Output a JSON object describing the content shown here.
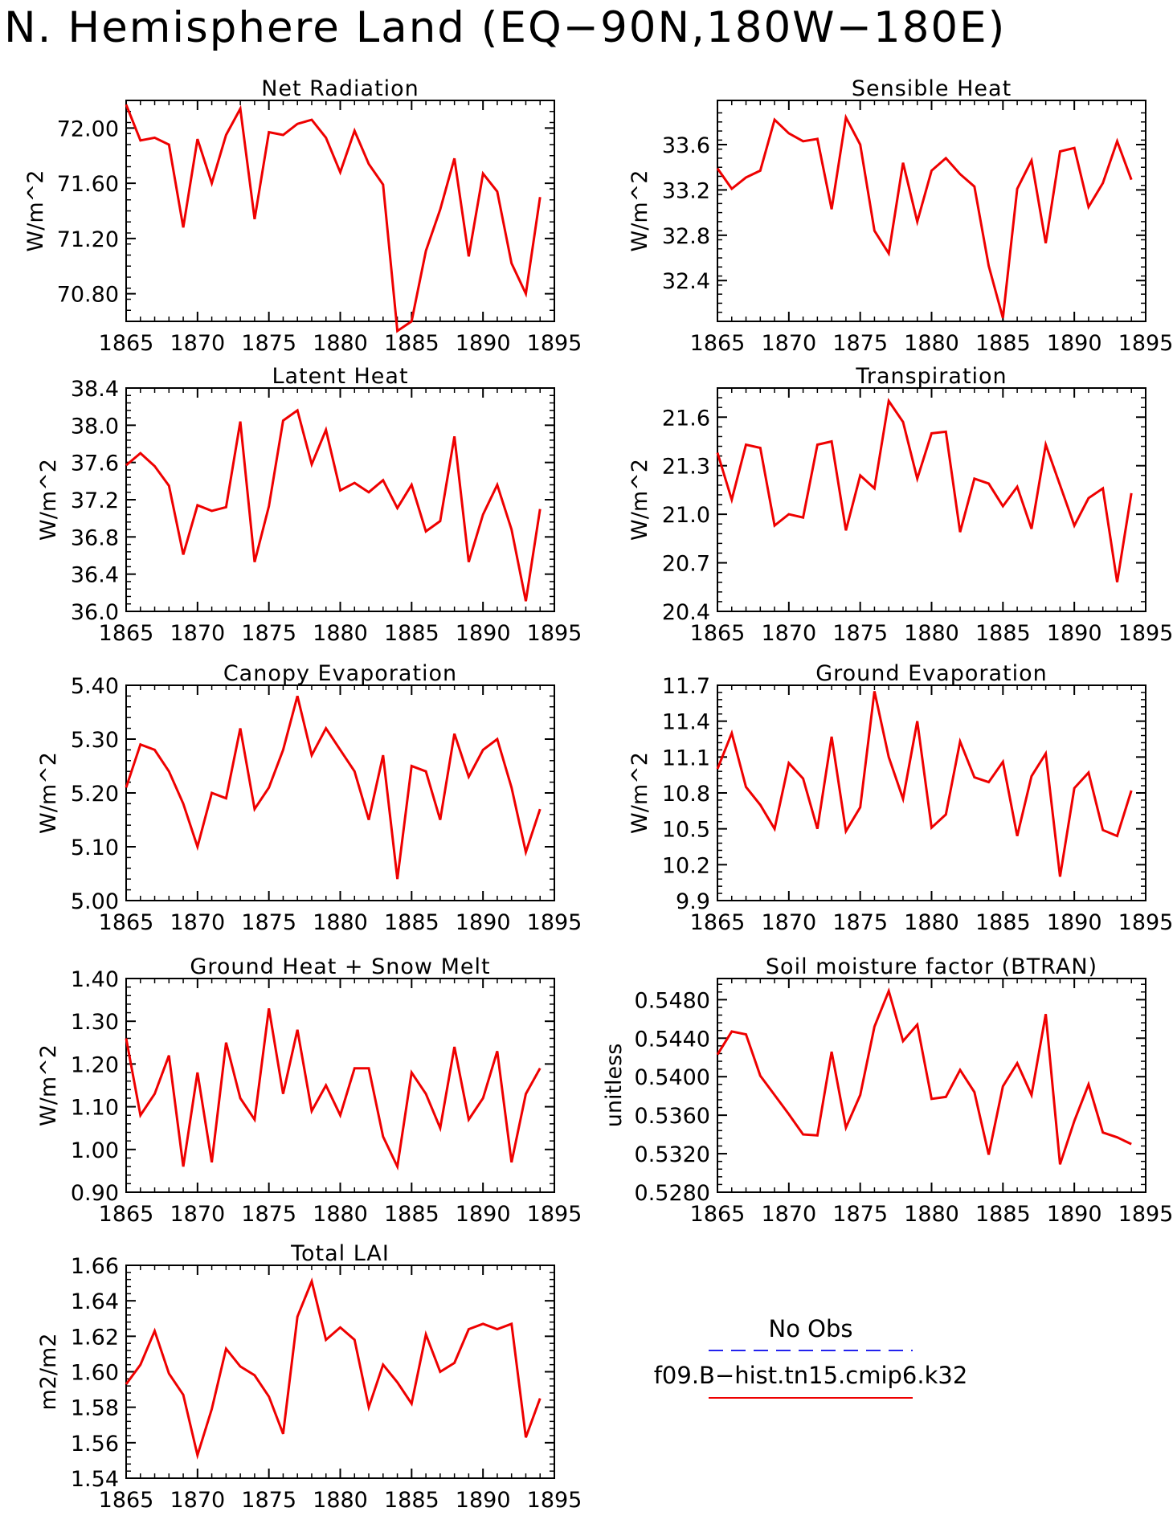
{
  "page": {
    "title": "N. Hemisphere Land (EQ−90N,180W−180E)"
  },
  "legend": {
    "obs_label": "No Obs",
    "obs_color": "#2222ee",
    "model_label": "f09.B−hist.tn15.cmip6.k32",
    "model_color": "#ee0000"
  },
  "chart_data": [
    {
      "type": "line",
      "title": "Net Radiation",
      "ylabel": "W/m^2",
      "xlim": [
        1865,
        1895
      ],
      "ylim": [
        70.6,
        72.2
      ],
      "xticks": [
        1865,
        1870,
        1875,
        1880,
        1885,
        1890,
        1895
      ],
      "yticks": [
        70.8,
        71.2,
        71.6,
        72.0
      ],
      "ytick_labels": [
        "70.80",
        "71.20",
        "71.60",
        "72.00"
      ],
      "yminor": 0.08,
      "series": [
        {
          "color": "#ee0000",
          "x": [
            1865,
            1866,
            1867,
            1868,
            1869,
            1870,
            1871,
            1872,
            1873,
            1874,
            1875,
            1876,
            1877,
            1878,
            1879,
            1880,
            1881,
            1882,
            1883,
            1884,
            1885,
            1886,
            1887,
            1888,
            1889,
            1890,
            1891,
            1892,
            1893,
            1894
          ],
          "y": [
            72.17,
            71.91,
            71.93,
            71.88,
            71.28,
            71.92,
            71.6,
            71.95,
            72.14,
            71.34,
            71.97,
            71.95,
            72.03,
            72.06,
            71.93,
            71.68,
            71.98,
            71.74,
            71.59,
            70.53,
            70.6,
            71.11,
            71.41,
            71.78,
            71.07,
            71.67,
            71.54,
            71.02,
            70.8,
            71.5
          ]
        }
      ]
    },
    {
      "type": "line",
      "title": "Sensible Heat",
      "ylabel": "W/m^2",
      "xlim": [
        1865,
        1895
      ],
      "ylim": [
        32.04,
        33.99
      ],
      "xticks": [
        1865,
        1870,
        1875,
        1880,
        1885,
        1890,
        1895
      ],
      "yticks": [
        32.4,
        32.8,
        33.2,
        33.6
      ],
      "ytick_labels": [
        "32.4",
        "32.8",
        "33.2",
        "33.6"
      ],
      "yminor": 0.08,
      "series": [
        {
          "color": "#ee0000",
          "x": [
            1865,
            1866,
            1867,
            1868,
            1869,
            1870,
            1871,
            1872,
            1873,
            1874,
            1875,
            1876,
            1877,
            1878,
            1879,
            1880,
            1881,
            1882,
            1883,
            1884,
            1885,
            1886,
            1887,
            1888,
            1889,
            1890,
            1891,
            1892,
            1893,
            1894
          ],
          "y": [
            33.39,
            33.21,
            33.31,
            33.37,
            33.82,
            33.7,
            33.63,
            33.65,
            33.03,
            33.84,
            33.6,
            32.84,
            32.64,
            33.44,
            32.92,
            33.37,
            33.48,
            33.34,
            33.23,
            32.53,
            32.07,
            33.21,
            33.46,
            32.73,
            33.54,
            33.57,
            33.05,
            33.26,
            33.63,
            33.29
          ]
        }
      ]
    },
    {
      "type": "line",
      "title": "Latent Heat",
      "ylabel": "W/m^2",
      "xlim": [
        1865,
        1895
      ],
      "ylim": [
        36.0,
        38.4
      ],
      "xticks": [
        1865,
        1870,
        1875,
        1880,
        1885,
        1890,
        1895
      ],
      "yticks": [
        36.0,
        36.4,
        36.8,
        37.2,
        37.6,
        38.0,
        38.4
      ],
      "ytick_labels": [
        "36.0",
        "36.4",
        "36.8",
        "37.2",
        "37.6",
        "38.0",
        "38.4"
      ],
      "yminor": 0.08,
      "series": [
        {
          "color": "#ee0000",
          "x": [
            1865,
            1866,
            1867,
            1868,
            1869,
            1870,
            1871,
            1872,
            1873,
            1874,
            1875,
            1876,
            1877,
            1878,
            1879,
            1880,
            1881,
            1882,
            1883,
            1884,
            1885,
            1886,
            1887,
            1888,
            1889,
            1890,
            1891,
            1892,
            1893,
            1894
          ],
          "y": [
            37.57,
            37.7,
            37.56,
            37.35,
            36.61,
            37.14,
            37.08,
            37.12,
            38.04,
            36.53,
            37.13,
            38.05,
            38.16,
            37.58,
            37.95,
            37.3,
            37.38,
            37.28,
            37.41,
            37.11,
            37.36,
            36.86,
            36.97,
            37.88,
            36.53,
            37.04,
            37.36,
            36.88,
            36.11,
            37.1
          ]
        }
      ]
    },
    {
      "type": "line",
      "title": "Transpiration",
      "ylabel": "W/m^2",
      "xlim": [
        1865,
        1895
      ],
      "ylim": [
        20.4,
        21.78
      ],
      "xticks": [
        1865,
        1870,
        1875,
        1880,
        1885,
        1890,
        1895
      ],
      "yticks": [
        20.4,
        20.7,
        21.0,
        21.3,
        21.6
      ],
      "ytick_labels": [
        "20.4",
        "20.7",
        "21.0",
        "21.3",
        "21.6"
      ],
      "yminor": 0.06,
      "series": [
        {
          "color": "#ee0000",
          "x": [
            1865,
            1866,
            1867,
            1868,
            1869,
            1870,
            1871,
            1872,
            1873,
            1874,
            1875,
            1876,
            1877,
            1878,
            1879,
            1880,
            1881,
            1882,
            1883,
            1884,
            1885,
            1886,
            1887,
            1888,
            1889,
            1890,
            1891,
            1892,
            1893,
            1894
          ],
          "y": [
            21.38,
            21.09,
            21.43,
            21.41,
            20.93,
            21.0,
            20.98,
            21.43,
            21.45,
            20.9,
            21.24,
            21.16,
            21.7,
            21.57,
            21.22,
            21.5,
            21.51,
            20.89,
            21.22,
            21.19,
            21.05,
            21.17,
            20.91,
            21.43,
            21.18,
            20.93,
            21.1,
            21.16,
            20.58,
            21.13
          ]
        }
      ]
    },
    {
      "type": "line",
      "title": "Canopy Evaporation",
      "ylabel": "W/m^2",
      "xlim": [
        1865,
        1895
      ],
      "ylim": [
        5.0,
        5.4
      ],
      "xticks": [
        1865,
        1870,
        1875,
        1880,
        1885,
        1890,
        1895
      ],
      "yticks": [
        5.0,
        5.1,
        5.2,
        5.3,
        5.4
      ],
      "ytick_labels": [
        "5.00",
        "5.10",
        "5.20",
        "5.30",
        "5.40"
      ],
      "yminor": 0.02,
      "series": [
        {
          "color": "#ee0000",
          "x": [
            1865,
            1866,
            1867,
            1868,
            1869,
            1870,
            1871,
            1872,
            1873,
            1874,
            1875,
            1876,
            1877,
            1878,
            1879,
            1880,
            1881,
            1882,
            1883,
            1884,
            1885,
            1886,
            1887,
            1888,
            1889,
            1890,
            1891,
            1892,
            1893,
            1894
          ],
          "y": [
            5.21,
            5.29,
            5.28,
            5.24,
            5.18,
            5.1,
            5.2,
            5.19,
            5.32,
            5.17,
            5.21,
            5.28,
            5.38,
            5.27,
            5.32,
            5.28,
            5.24,
            5.15,
            5.27,
            5.04,
            5.25,
            5.24,
            5.15,
            5.31,
            5.23,
            5.28,
            5.3,
            5.21,
            5.09,
            5.17
          ]
        }
      ]
    },
    {
      "type": "line",
      "title": "Ground Evaporation",
      "ylabel": "W/m^2",
      "xlim": [
        1865,
        1895
      ],
      "ylim": [
        9.9,
        11.7
      ],
      "xticks": [
        1865,
        1870,
        1875,
        1880,
        1885,
        1890,
        1895
      ],
      "yticks": [
        9.9,
        10.2,
        10.5,
        10.8,
        11.1,
        11.4,
        11.7
      ],
      "ytick_labels": [
        "9.9",
        "10.2",
        "10.5",
        "10.8",
        "11.1",
        "11.4",
        "11.7"
      ],
      "yminor": 0.06,
      "series": [
        {
          "color": "#ee0000",
          "x": [
            1865,
            1866,
            1867,
            1868,
            1869,
            1870,
            1871,
            1872,
            1873,
            1874,
            1875,
            1876,
            1877,
            1878,
            1879,
            1880,
            1881,
            1882,
            1883,
            1884,
            1885,
            1886,
            1887,
            1888,
            1889,
            1890,
            1891,
            1892,
            1893,
            1894
          ],
          "y": [
            11.0,
            11.3,
            10.85,
            10.7,
            10.5,
            11.05,
            10.92,
            10.5,
            11.27,
            10.48,
            10.68,
            11.65,
            11.1,
            10.75,
            11.4,
            10.51,
            10.62,
            11.23,
            10.93,
            10.89,
            11.06,
            10.44,
            10.94,
            11.13,
            10.1,
            10.84,
            10.97,
            10.49,
            10.44,
            10.82
          ]
        }
      ]
    },
    {
      "type": "line",
      "title": "Ground Heat + Snow Melt",
      "ylabel": "W/m^2",
      "xlim": [
        1865,
        1895
      ],
      "ylim": [
        0.9,
        1.4
      ],
      "xticks": [
        1865,
        1870,
        1875,
        1880,
        1885,
        1890,
        1895
      ],
      "yticks": [
        0.9,
        1.0,
        1.1,
        1.2,
        1.3,
        1.4
      ],
      "ytick_labels": [
        "0.90",
        "1.00",
        "1.10",
        "1.20",
        "1.30",
        "1.40"
      ],
      "yminor": 0.02,
      "series": [
        {
          "color": "#ee0000",
          "x": [
            1865,
            1866,
            1867,
            1868,
            1869,
            1870,
            1871,
            1872,
            1873,
            1874,
            1875,
            1876,
            1877,
            1878,
            1879,
            1880,
            1881,
            1882,
            1883,
            1884,
            1885,
            1886,
            1887,
            1888,
            1889,
            1890,
            1891,
            1892,
            1893,
            1894
          ],
          "y": [
            1.26,
            1.08,
            1.13,
            1.22,
            0.96,
            1.18,
            0.97,
            1.25,
            1.12,
            1.07,
            1.33,
            1.13,
            1.28,
            1.09,
            1.15,
            1.08,
            1.19,
            1.19,
            1.03,
            0.96,
            1.18,
            1.13,
            1.05,
            1.24,
            1.07,
            1.12,
            1.23,
            0.97,
            1.13,
            1.19
          ]
        }
      ]
    },
    {
      "type": "line",
      "title": "Soil moisture factor (BTRAN)",
      "ylabel": "unitless",
      "xlim": [
        1865,
        1895
      ],
      "ylim": [
        0.528,
        0.5502
      ],
      "xticks": [
        1865,
        1870,
        1875,
        1880,
        1885,
        1890,
        1895
      ],
      "yticks": [
        0.528,
        0.532,
        0.536,
        0.54,
        0.544,
        0.548
      ],
      "ytick_labels": [
        "0.5280",
        "0.5320",
        "0.5360",
        "0.5400",
        "0.5440",
        "0.5480"
      ],
      "yminor": 0.0008,
      "series": [
        {
          "color": "#ee0000",
          "x": [
            1865,
            1866,
            1867,
            1868,
            1869,
            1870,
            1871,
            1872,
            1873,
            1874,
            1875,
            1876,
            1877,
            1878,
            1879,
            1880,
            1881,
            1882,
            1883,
            1884,
            1885,
            1886,
            1887,
            1888,
            1889,
            1890,
            1891,
            1892,
            1893,
            1894
          ],
          "y": [
            0.5423,
            0.5447,
            0.5444,
            0.5401,
            0.5381,
            0.5361,
            0.534,
            0.5339,
            0.5426,
            0.5347,
            0.5381,
            0.5452,
            0.5489,
            0.5437,
            0.5454,
            0.5377,
            0.5379,
            0.5407,
            0.5384,
            0.5319,
            0.539,
            0.5414,
            0.5381,
            0.5465,
            0.5309,
            0.5354,
            0.5392,
            0.5342,
            0.5337,
            0.533
          ]
        }
      ]
    },
    {
      "type": "line",
      "title": "Total LAI",
      "ylabel": "m2/m2",
      "xlim": [
        1865,
        1895
      ],
      "ylim": [
        1.54,
        1.66
      ],
      "xticks": [
        1865,
        1870,
        1875,
        1880,
        1885,
        1890,
        1895
      ],
      "yticks": [
        1.54,
        1.56,
        1.58,
        1.6,
        1.62,
        1.64,
        1.66
      ],
      "ytick_labels": [
        "1.54",
        "1.56",
        "1.58",
        "1.60",
        "1.62",
        "1.64",
        "1.66"
      ],
      "yminor": 0.004,
      "series": [
        {
          "color": "#ee0000",
          "x": [
            1865,
            1866,
            1867,
            1868,
            1869,
            1870,
            1871,
            1872,
            1873,
            1874,
            1875,
            1876,
            1877,
            1878,
            1879,
            1880,
            1881,
            1882,
            1883,
            1884,
            1885,
            1886,
            1887,
            1888,
            1889,
            1890,
            1891,
            1892,
            1893,
            1894
          ],
          "y": [
            1.593,
            1.604,
            1.623,
            1.599,
            1.587,
            1.553,
            1.579,
            1.613,
            1.603,
            1.598,
            1.586,
            1.565,
            1.631,
            1.651,
            1.618,
            1.625,
            1.618,
            1.58,
            1.604,
            1.594,
            1.582,
            1.621,
            1.6,
            1.605,
            1.624,
            1.627,
            1.624,
            1.627,
            1.563,
            1.585
          ]
        }
      ]
    }
  ]
}
